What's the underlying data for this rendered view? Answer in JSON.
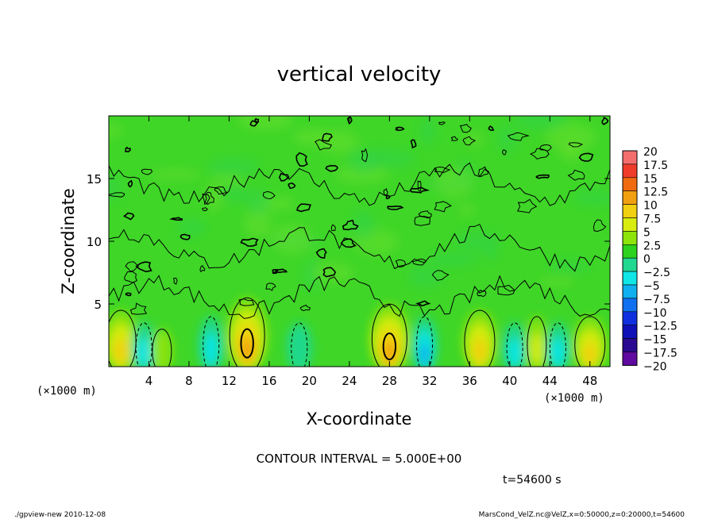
{
  "chart_data": {
    "type": "heatmap",
    "title": "vertical velocity",
    "xlabel": "X-coordinate",
    "ylabel": "Z-coordinate",
    "x_unit_label": "(×1000 m)",
    "y_unit_label": "(×1000 m)",
    "xlim": [
      0,
      50
    ],
    "ylim": [
      0,
      20
    ],
    "x_ticks": [
      4,
      8,
      12,
      16,
      20,
      24,
      28,
      32,
      36,
      40,
      44,
      48
    ],
    "y_ticks": [
      5,
      10,
      15
    ],
    "contour_interval_text": "CONTOUR INTERVAL = 5.000E+00",
    "time_text": "t=54600 s",
    "colorbar": {
      "levels": [
        "20",
        "17.5",
        "15",
        "12.5",
        "10",
        "7.5",
        "5",
        "2.5",
        "0",
        "-2.5",
        "-5",
        "-7.5",
        "-10",
        "-12.5",
        "-15",
        "-17.5",
        "-20"
      ],
      "colors": [
        "#f4a0a0",
        "#f46e6e",
        "#f03c2a",
        "#f06a10",
        "#f0a010",
        "#f0d010",
        "#d8ec10",
        "#8ce40a",
        "#2cd21e",
        "#20d890",
        "#10e6e6",
        "#10b0ee",
        "#1070f0",
        "#1030e0",
        "#1010b8",
        "#2a0a90",
        "#600aa0"
      ]
    },
    "features": [
      {
        "kind": "updraft",
        "x": 1.2,
        "z_top": 5.0,
        "peak": 7.5
      },
      {
        "kind": "downdraft",
        "x": 3.5,
        "z_top": 4.0,
        "peak": -5
      },
      {
        "kind": "updraft",
        "x": 5.3,
        "z_top": 3.5,
        "peak": 2.5
      },
      {
        "kind": "downdraft",
        "x": 10.2,
        "z_top": 4.5,
        "peak": -5
      },
      {
        "kind": "updraft",
        "x": 13.8,
        "z_top": 6.0,
        "peak": 10
      },
      {
        "kind": "downdraft",
        "x": 19.0,
        "z_top": 4.0,
        "peak": -2.5
      },
      {
        "kind": "updraft",
        "x": 28.0,
        "z_top": 5.5,
        "peak": 10
      },
      {
        "kind": "downdraft",
        "x": 31.5,
        "z_top": 4.5,
        "peak": -7.5
      },
      {
        "kind": "updraft",
        "x": 37.0,
        "z_top": 5.0,
        "peak": 7.5
      },
      {
        "kind": "downdraft",
        "x": 40.5,
        "z_top": 4.0,
        "peak": -5
      },
      {
        "kind": "updraft",
        "x": 42.7,
        "z_top": 4.5,
        "peak": 5
      },
      {
        "kind": "downdraft",
        "x": 44.8,
        "z_top": 4.0,
        "peak": -5
      },
      {
        "kind": "updraft",
        "x": 48.0,
        "z_top": 4.5,
        "peak": 7.5
      }
    ]
  },
  "footer": {
    "left": "./gpview-new  2010-12-08",
    "right": "MarsCond_VelZ.nc@VelZ,x=0:50000,z=0:20000,t=54600"
  }
}
